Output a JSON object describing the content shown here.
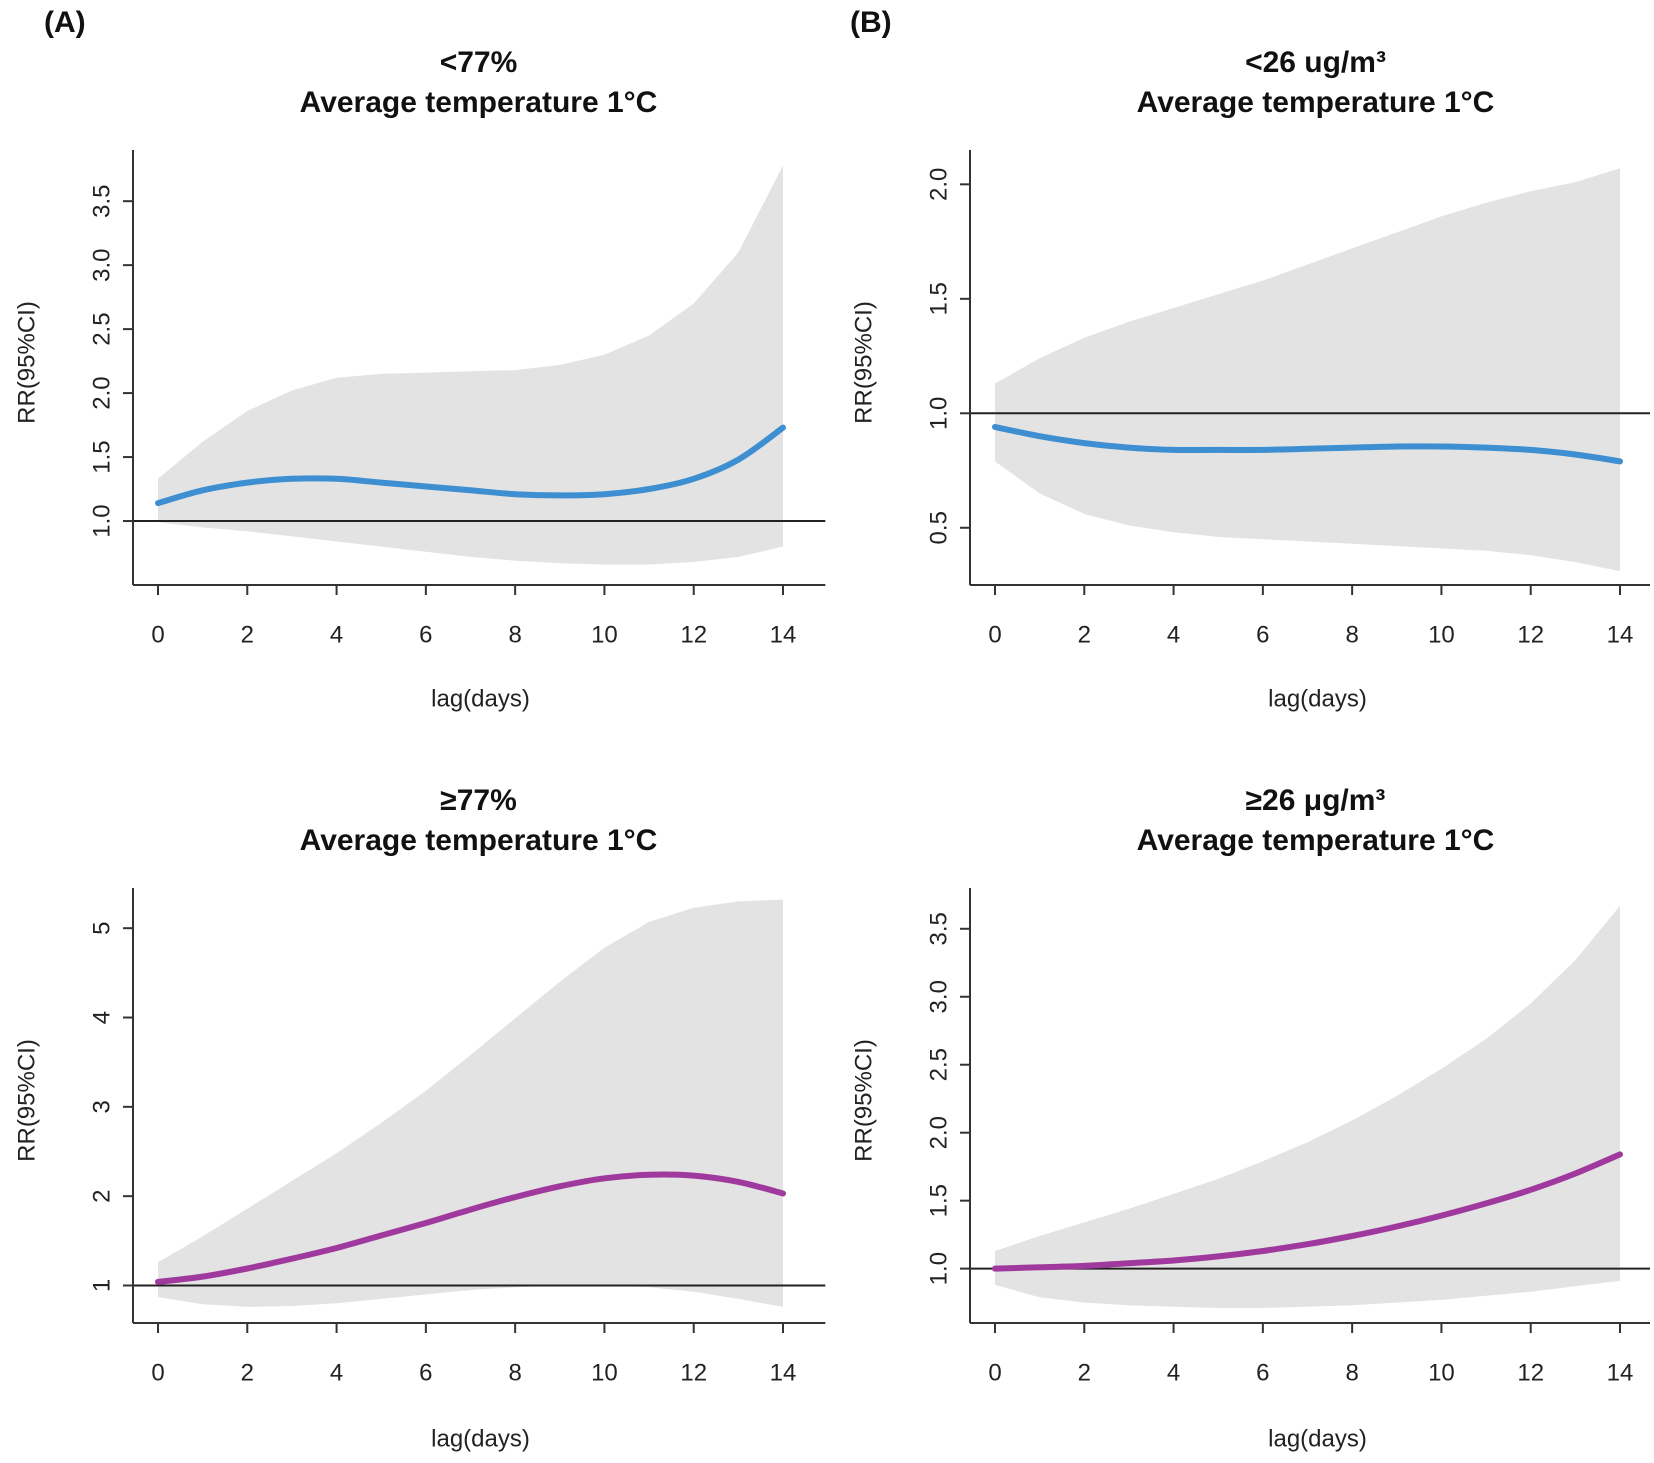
{
  "panel_labels": [
    "(A)",
    "(B)"
  ],
  "colors": {
    "ci_band": "#e3e3e3",
    "axis": "#333333",
    "reference_line": "#222222"
  },
  "chart_data": [
    {
      "type": "line",
      "panel": "(A)",
      "title": [
        "<77%",
        "Average temperature 1°C"
      ],
      "xlabel": "lag(days)",
      "ylabel": "RR(95%CI)",
      "xlim": [
        -0.5,
        14.5
      ],
      "ylim": [
        0.5,
        3.9
      ],
      "xticks": [
        0,
        2,
        4,
        6,
        8,
        10,
        12,
        14
      ],
      "yticks": [
        1.0,
        1.5,
        2.0,
        2.5,
        3.0,
        3.5
      ],
      "ytick_labels": [
        "1.0",
        "1.5",
        "2.0",
        "2.5",
        "3.0",
        "3.5"
      ],
      "reference_line": 1.0,
      "line_color": "#3d8fd1",
      "x": [
        0,
        1,
        2,
        3,
        4,
        5,
        6,
        7,
        8,
        9,
        10,
        11,
        12,
        13,
        14
      ],
      "series": [
        {
          "name": "RR",
          "values": [
            1.14,
            1.24,
            1.3,
            1.33,
            1.33,
            1.3,
            1.27,
            1.24,
            1.21,
            1.2,
            1.21,
            1.25,
            1.33,
            1.48,
            1.73
          ]
        },
        {
          "name": "upper 95% CI",
          "values": [
            1.33,
            1.62,
            1.86,
            2.02,
            2.12,
            2.15,
            2.16,
            2.17,
            2.18,
            2.22,
            2.3,
            2.45,
            2.7,
            3.1,
            3.78
          ]
        },
        {
          "name": "lower 95% CI",
          "values": [
            0.99,
            0.95,
            0.92,
            0.88,
            0.84,
            0.8,
            0.76,
            0.72,
            0.69,
            0.67,
            0.66,
            0.66,
            0.68,
            0.72,
            0.8
          ]
        }
      ]
    },
    {
      "type": "line",
      "panel": "(B)",
      "title": [
        "<26 ug/m³",
        "Average temperature 1°C"
      ],
      "xlabel": "lag(days)",
      "ylabel": "RR(95%CI)",
      "xlim": [
        -0.5,
        14.5
      ],
      "ylim": [
        0.25,
        2.15
      ],
      "xticks": [
        0,
        2,
        4,
        6,
        8,
        10,
        12,
        14
      ],
      "yticks": [
        0.5,
        1.0,
        1.5,
        2.0
      ],
      "ytick_labels": [
        "0.5",
        "1.0",
        "1.5",
        "2.0"
      ],
      "reference_line": 1.0,
      "line_color": "#3d8fd1",
      "x": [
        0,
        1,
        2,
        3,
        4,
        5,
        6,
        7,
        8,
        9,
        10,
        11,
        12,
        13,
        14
      ],
      "series": [
        {
          "name": "RR",
          "values": [
            0.94,
            0.9,
            0.87,
            0.85,
            0.84,
            0.84,
            0.84,
            0.845,
            0.85,
            0.855,
            0.855,
            0.85,
            0.84,
            0.82,
            0.79
          ]
        },
        {
          "name": "upper 95% CI",
          "values": [
            1.13,
            1.24,
            1.33,
            1.4,
            1.46,
            1.52,
            1.58,
            1.65,
            1.72,
            1.79,
            1.86,
            1.92,
            1.97,
            2.01,
            2.07
          ]
        },
        {
          "name": "lower 95% CI",
          "values": [
            0.79,
            0.65,
            0.56,
            0.51,
            0.48,
            0.46,
            0.45,
            0.44,
            0.43,
            0.42,
            0.41,
            0.4,
            0.38,
            0.35,
            0.31
          ]
        }
      ]
    },
    {
      "type": "line",
      "panel": "(A)",
      "title": [
        "≥77%",
        "Average temperature 1°C"
      ],
      "xlabel": "lag(days)",
      "ylabel": "RR(95%CI)",
      "xlim": [
        -0.5,
        14.5
      ],
      "ylim": [
        0.58,
        5.45
      ],
      "xticks": [
        0,
        2,
        4,
        6,
        8,
        10,
        12,
        14
      ],
      "yticks": [
        1,
        2,
        3,
        4,
        5
      ],
      "ytick_labels": [
        "1",
        "2",
        "3",
        "4",
        "5"
      ],
      "reference_line": 1.0,
      "line_color": "#a0399e",
      "x": [
        0,
        1,
        2,
        3,
        4,
        5,
        6,
        7,
        8,
        9,
        10,
        11,
        12,
        13,
        14
      ],
      "series": [
        {
          "name": "RR",
          "values": [
            1.04,
            1.1,
            1.19,
            1.3,
            1.42,
            1.56,
            1.7,
            1.85,
            1.99,
            2.11,
            2.2,
            2.24,
            2.23,
            2.16,
            2.03
          ]
        },
        {
          "name": "upper 95% CI",
          "values": [
            1.26,
            1.55,
            1.86,
            2.17,
            2.48,
            2.82,
            3.18,
            3.58,
            3.99,
            4.4,
            4.78,
            5.07,
            5.23,
            5.3,
            5.32
          ]
        },
        {
          "name": "lower 95% CI",
          "values": [
            0.87,
            0.79,
            0.76,
            0.77,
            0.8,
            0.85,
            0.9,
            0.95,
            0.98,
            1.0,
            1.0,
            0.98,
            0.93,
            0.85,
            0.76
          ]
        }
      ]
    },
    {
      "type": "line",
      "panel": "(B)",
      "title": [
        "≥26 μg/m³",
        "Average temperature 1°C"
      ],
      "xlabel": "lag(days)",
      "ylabel": "RR(95%CI)",
      "xlim": [
        -0.5,
        14.5
      ],
      "ylim": [
        0.6,
        3.8
      ],
      "xticks": [
        0,
        2,
        4,
        6,
        8,
        10,
        12,
        14
      ],
      "yticks": [
        1.0,
        1.5,
        2.0,
        2.5,
        3.0,
        3.5
      ],
      "ytick_labels": [
        "1.0",
        "1.5",
        "2.0",
        "2.5",
        "3.0",
        "3.5"
      ],
      "reference_line": 1.0,
      "line_color": "#a0399e",
      "x": [
        0,
        1,
        2,
        3,
        4,
        5,
        6,
        7,
        8,
        9,
        10,
        11,
        12,
        13,
        14
      ],
      "series": [
        {
          "name": "RR",
          "values": [
            1.0,
            1.01,
            1.02,
            1.04,
            1.06,
            1.09,
            1.13,
            1.18,
            1.24,
            1.31,
            1.39,
            1.48,
            1.58,
            1.7,
            1.84
          ]
        },
        {
          "name": "upper 95% CI",
          "values": [
            1.13,
            1.24,
            1.34,
            1.44,
            1.55,
            1.66,
            1.79,
            1.93,
            2.09,
            2.27,
            2.47,
            2.69,
            2.95,
            3.27,
            3.67
          ]
        },
        {
          "name": "lower 95% CI",
          "values": [
            0.88,
            0.79,
            0.75,
            0.73,
            0.72,
            0.71,
            0.71,
            0.72,
            0.73,
            0.75,
            0.77,
            0.8,
            0.83,
            0.87,
            0.91
          ]
        }
      ]
    }
  ]
}
